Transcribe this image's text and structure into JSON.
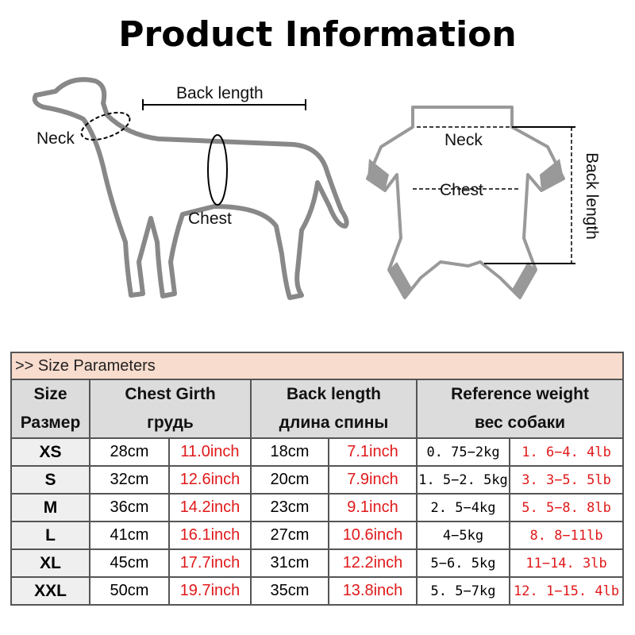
{
  "title": "Product Information",
  "dog_diagram": {
    "neck": "Neck",
    "back_length": "Back length",
    "chest": "Chest"
  },
  "garment_diagram": {
    "neck": "Neck",
    "chest": "Chest",
    "back_length": "Back length"
  },
  "table": {
    "banner": ">> Size Parameters",
    "headers": [
      {
        "en": "Size",
        "ru": "Размер"
      },
      {
        "en": "Chest Girth",
        "ru": "грудь"
      },
      {
        "en": "Back length",
        "ru": "длина спины"
      },
      {
        "en": "Reference weight",
        "ru": "вес собаки"
      }
    ],
    "rows": [
      {
        "size": "XS",
        "chest_cm": "28cm",
        "chest_in": "11.0inch",
        "back_cm": "18cm",
        "back_in": "7.1inch",
        "weight_kg": "0. 75−2kg",
        "weight_lb": "1. 6−4. 4lb"
      },
      {
        "size": "S",
        "chest_cm": "32cm",
        "chest_in": "12.6inch",
        "back_cm": "20cm",
        "back_in": "7.9inch",
        "weight_kg": "1. 5−2. 5kg",
        "weight_lb": "3. 3−5. 5lb"
      },
      {
        "size": "M",
        "chest_cm": "36cm",
        "chest_in": "14.2inch",
        "back_cm": "23cm",
        "back_in": "9.1inch",
        "weight_kg": "2. 5−4kg",
        "weight_lb": "5. 5−8. 8lb"
      },
      {
        "size": "L",
        "chest_cm": "41cm",
        "chest_in": "16.1inch",
        "back_cm": "27cm",
        "back_in": "10.6inch",
        "weight_kg": "4−5kg",
        "weight_lb": "8. 8−11lb"
      },
      {
        "size": "XL",
        "chest_cm": "45cm",
        "chest_in": "17.7inch",
        "back_cm": "31cm",
        "back_in": "12.2inch",
        "weight_kg": "5−6. 5kg",
        "weight_lb": "11−14. 3lb"
      },
      {
        "size": "XXL",
        "chest_cm": "50cm",
        "chest_in": "19.7inch",
        "back_cm": "35cm",
        "back_in": "13.8inch",
        "weight_kg": "5. 5−7kg",
        "weight_lb": "12. 1−15. 4lb"
      }
    ]
  },
  "colors": {
    "inch_lb_text": "#e0191a",
    "banner_bg": "#f8dccd",
    "header_bg": "#dcdcdc"
  }
}
